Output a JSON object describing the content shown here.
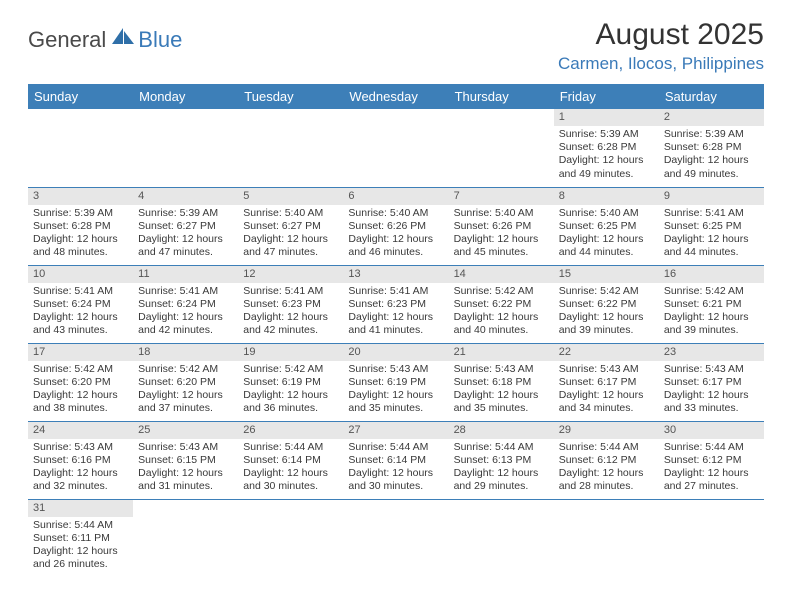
{
  "logo": {
    "general": "General",
    "blue": "Blue"
  },
  "title": "August 2025",
  "location": "Carmen, Ilocos, Philippines",
  "colors": {
    "header_bg": "#3d7fb8",
    "header_text": "#ffffff",
    "daynum_bg": "#e7e7e7",
    "row_divider": "#3d7fb8",
    "logo_blue": "#3a7ab8",
    "logo_gray": "#4a4a4a"
  },
  "day_headers": [
    "Sunday",
    "Monday",
    "Tuesday",
    "Wednesday",
    "Thursday",
    "Friday",
    "Saturday"
  ],
  "weeks": [
    [
      null,
      null,
      null,
      null,
      null,
      {
        "n": "1",
        "sr": "Sunrise: 5:39 AM",
        "ss": "Sunset: 6:28 PM",
        "d1": "Daylight: 12 hours",
        "d2": "and 49 minutes."
      },
      {
        "n": "2",
        "sr": "Sunrise: 5:39 AM",
        "ss": "Sunset: 6:28 PM",
        "d1": "Daylight: 12 hours",
        "d2": "and 49 minutes."
      }
    ],
    [
      {
        "n": "3",
        "sr": "Sunrise: 5:39 AM",
        "ss": "Sunset: 6:28 PM",
        "d1": "Daylight: 12 hours",
        "d2": "and 48 minutes."
      },
      {
        "n": "4",
        "sr": "Sunrise: 5:39 AM",
        "ss": "Sunset: 6:27 PM",
        "d1": "Daylight: 12 hours",
        "d2": "and 47 minutes."
      },
      {
        "n": "5",
        "sr": "Sunrise: 5:40 AM",
        "ss": "Sunset: 6:27 PM",
        "d1": "Daylight: 12 hours",
        "d2": "and 47 minutes."
      },
      {
        "n": "6",
        "sr": "Sunrise: 5:40 AM",
        "ss": "Sunset: 6:26 PM",
        "d1": "Daylight: 12 hours",
        "d2": "and 46 minutes."
      },
      {
        "n": "7",
        "sr": "Sunrise: 5:40 AM",
        "ss": "Sunset: 6:26 PM",
        "d1": "Daylight: 12 hours",
        "d2": "and 45 minutes."
      },
      {
        "n": "8",
        "sr": "Sunrise: 5:40 AM",
        "ss": "Sunset: 6:25 PM",
        "d1": "Daylight: 12 hours",
        "d2": "and 44 minutes."
      },
      {
        "n": "9",
        "sr": "Sunrise: 5:41 AM",
        "ss": "Sunset: 6:25 PM",
        "d1": "Daylight: 12 hours",
        "d2": "and 44 minutes."
      }
    ],
    [
      {
        "n": "10",
        "sr": "Sunrise: 5:41 AM",
        "ss": "Sunset: 6:24 PM",
        "d1": "Daylight: 12 hours",
        "d2": "and 43 minutes."
      },
      {
        "n": "11",
        "sr": "Sunrise: 5:41 AM",
        "ss": "Sunset: 6:24 PM",
        "d1": "Daylight: 12 hours",
        "d2": "and 42 minutes."
      },
      {
        "n": "12",
        "sr": "Sunrise: 5:41 AM",
        "ss": "Sunset: 6:23 PM",
        "d1": "Daylight: 12 hours",
        "d2": "and 42 minutes."
      },
      {
        "n": "13",
        "sr": "Sunrise: 5:41 AM",
        "ss": "Sunset: 6:23 PM",
        "d1": "Daylight: 12 hours",
        "d2": "and 41 minutes."
      },
      {
        "n": "14",
        "sr": "Sunrise: 5:42 AM",
        "ss": "Sunset: 6:22 PM",
        "d1": "Daylight: 12 hours",
        "d2": "and 40 minutes."
      },
      {
        "n": "15",
        "sr": "Sunrise: 5:42 AM",
        "ss": "Sunset: 6:22 PM",
        "d1": "Daylight: 12 hours",
        "d2": "and 39 minutes."
      },
      {
        "n": "16",
        "sr": "Sunrise: 5:42 AM",
        "ss": "Sunset: 6:21 PM",
        "d1": "Daylight: 12 hours",
        "d2": "and 39 minutes."
      }
    ],
    [
      {
        "n": "17",
        "sr": "Sunrise: 5:42 AM",
        "ss": "Sunset: 6:20 PM",
        "d1": "Daylight: 12 hours",
        "d2": "and 38 minutes."
      },
      {
        "n": "18",
        "sr": "Sunrise: 5:42 AM",
        "ss": "Sunset: 6:20 PM",
        "d1": "Daylight: 12 hours",
        "d2": "and 37 minutes."
      },
      {
        "n": "19",
        "sr": "Sunrise: 5:42 AM",
        "ss": "Sunset: 6:19 PM",
        "d1": "Daylight: 12 hours",
        "d2": "and 36 minutes."
      },
      {
        "n": "20",
        "sr": "Sunrise: 5:43 AM",
        "ss": "Sunset: 6:19 PM",
        "d1": "Daylight: 12 hours",
        "d2": "and 35 minutes."
      },
      {
        "n": "21",
        "sr": "Sunrise: 5:43 AM",
        "ss": "Sunset: 6:18 PM",
        "d1": "Daylight: 12 hours",
        "d2": "and 35 minutes."
      },
      {
        "n": "22",
        "sr": "Sunrise: 5:43 AM",
        "ss": "Sunset: 6:17 PM",
        "d1": "Daylight: 12 hours",
        "d2": "and 34 minutes."
      },
      {
        "n": "23",
        "sr": "Sunrise: 5:43 AM",
        "ss": "Sunset: 6:17 PM",
        "d1": "Daylight: 12 hours",
        "d2": "and 33 minutes."
      }
    ],
    [
      {
        "n": "24",
        "sr": "Sunrise: 5:43 AM",
        "ss": "Sunset: 6:16 PM",
        "d1": "Daylight: 12 hours",
        "d2": "and 32 minutes."
      },
      {
        "n": "25",
        "sr": "Sunrise: 5:43 AM",
        "ss": "Sunset: 6:15 PM",
        "d1": "Daylight: 12 hours",
        "d2": "and 31 minutes."
      },
      {
        "n": "26",
        "sr": "Sunrise: 5:44 AM",
        "ss": "Sunset: 6:14 PM",
        "d1": "Daylight: 12 hours",
        "d2": "and 30 minutes."
      },
      {
        "n": "27",
        "sr": "Sunrise: 5:44 AM",
        "ss": "Sunset: 6:14 PM",
        "d1": "Daylight: 12 hours",
        "d2": "and 30 minutes."
      },
      {
        "n": "28",
        "sr": "Sunrise: 5:44 AM",
        "ss": "Sunset: 6:13 PM",
        "d1": "Daylight: 12 hours",
        "d2": "and 29 minutes."
      },
      {
        "n": "29",
        "sr": "Sunrise: 5:44 AM",
        "ss": "Sunset: 6:12 PM",
        "d1": "Daylight: 12 hours",
        "d2": "and 28 minutes."
      },
      {
        "n": "30",
        "sr": "Sunrise: 5:44 AM",
        "ss": "Sunset: 6:12 PM",
        "d1": "Daylight: 12 hours",
        "d2": "and 27 minutes."
      }
    ],
    [
      {
        "n": "31",
        "sr": "Sunrise: 5:44 AM",
        "ss": "Sunset: 6:11 PM",
        "d1": "Daylight: 12 hours",
        "d2": "and 26 minutes."
      },
      null,
      null,
      null,
      null,
      null,
      null
    ]
  ]
}
